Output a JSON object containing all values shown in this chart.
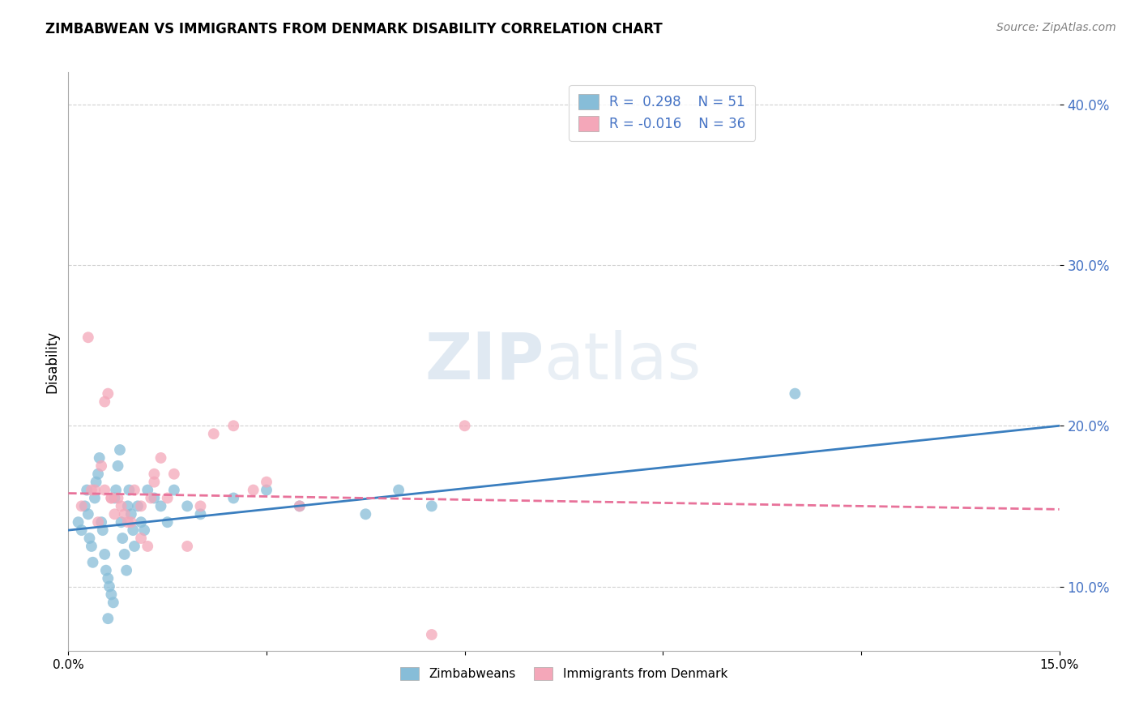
{
  "title": "ZIMBABWEAN VS IMMIGRANTS FROM DENMARK DISABILITY CORRELATION CHART",
  "source": "Source: ZipAtlas.com",
  "ylabel": "Disability",
  "xlim": [
    0.0,
    15.0
  ],
  "ylim": [
    6.0,
    42.0
  ],
  "yticks": [
    10.0,
    20.0,
    30.0,
    40.0
  ],
  "ytick_labels": [
    "10.0%",
    "20.0%",
    "30.0%",
    "40.0%"
  ],
  "xticks": [
    0.0,
    3.0,
    6.0,
    9.0,
    12.0,
    15.0
  ],
  "xtick_labels": [
    "0.0%",
    "",
    "",
    "",
    "",
    "15.0%"
  ],
  "blue_color": "#87bdd8",
  "pink_color": "#f4a7b9",
  "blue_line_color": "#3a7ebf",
  "pink_line_color": "#e8729a",
  "watermark_part1": "ZIP",
  "watermark_part2": "atlas",
  "blue_scatter_x": [
    0.15,
    0.2,
    0.25,
    0.28,
    0.3,
    0.32,
    0.35,
    0.37,
    0.4,
    0.42,
    0.45,
    0.47,
    0.5,
    0.52,
    0.55,
    0.57,
    0.6,
    0.62,
    0.65,
    0.68,
    0.7,
    0.72,
    0.75,
    0.78,
    0.8,
    0.82,
    0.85,
    0.88,
    0.9,
    0.92,
    0.95,
    0.98,
    1.0,
    1.05,
    1.1,
    1.15,
    1.2,
    1.3,
    1.4,
    1.5,
    1.6,
    1.8,
    2.0,
    2.5,
    3.0,
    3.5,
    4.5,
    5.0,
    5.5,
    11.0,
    0.6
  ],
  "blue_scatter_y": [
    14.0,
    13.5,
    15.0,
    16.0,
    14.5,
    13.0,
    12.5,
    11.5,
    15.5,
    16.5,
    17.0,
    18.0,
    14.0,
    13.5,
    12.0,
    11.0,
    10.5,
    10.0,
    9.5,
    9.0,
    15.5,
    16.0,
    17.5,
    18.5,
    14.0,
    13.0,
    12.0,
    11.0,
    15.0,
    16.0,
    14.5,
    13.5,
    12.5,
    15.0,
    14.0,
    13.5,
    16.0,
    15.5,
    15.0,
    14.0,
    16.0,
    15.0,
    14.5,
    15.5,
    16.0,
    15.0,
    14.5,
    16.0,
    15.0,
    22.0,
    8.0
  ],
  "blue_line_x0": 0.0,
  "blue_line_y0": 13.5,
  "blue_line_x1": 15.0,
  "blue_line_y1": 20.0,
  "pink_scatter_x": [
    0.2,
    0.3,
    0.4,
    0.5,
    0.55,
    0.6,
    0.65,
    0.7,
    0.8,
    0.9,
    1.0,
    1.1,
    1.2,
    1.3,
    1.4,
    1.5,
    1.6,
    1.8,
    2.0,
    2.2,
    2.5,
    3.0,
    3.5,
    0.45,
    0.55,
    0.75,
    0.85,
    1.1,
    1.3,
    2.8,
    5.5,
    6.0,
    0.35,
    0.65,
    0.95,
    1.25
  ],
  "pink_scatter_y": [
    15.0,
    25.5,
    16.0,
    17.5,
    21.5,
    22.0,
    15.5,
    14.5,
    15.0,
    14.0,
    16.0,
    13.0,
    12.5,
    16.5,
    18.0,
    15.5,
    17.0,
    12.5,
    15.0,
    19.5,
    20.0,
    16.5,
    15.0,
    14.0,
    16.0,
    15.5,
    14.5,
    15.0,
    17.0,
    16.0,
    7.0,
    20.0,
    16.0,
    15.5,
    14.0,
    15.5
  ],
  "pink_line_x0": 0.0,
  "pink_line_y0": 15.8,
  "pink_line_x1": 15.0,
  "pink_line_y1": 14.8
}
